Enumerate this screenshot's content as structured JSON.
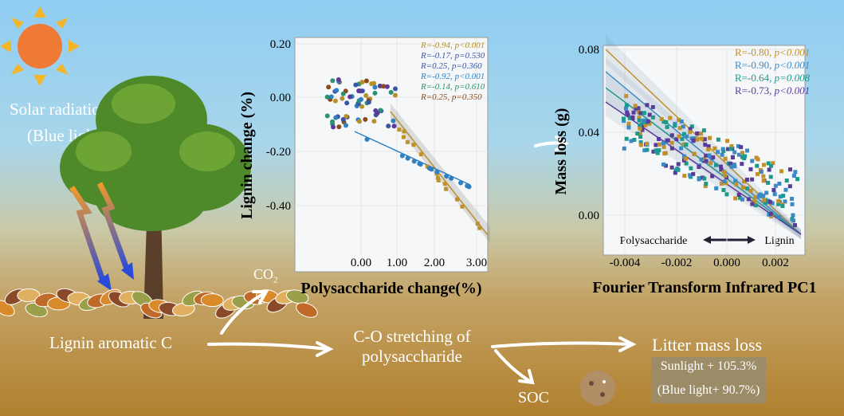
{
  "labels": {
    "solar": "Solar radiation",
    "blue": "(Blue light)",
    "lignin_c": "Lignin aromatic C",
    "co2": "CO",
    "co2_sub": "2",
    "co_stretch1": "C-O stretching of",
    "co_stretch2": "polysaccharide",
    "soc": "SOC",
    "mass_loss_title": "Litter mass loss",
    "sunlight": "Sunlight + 105.3%",
    "bluelight": "(Blue light+ 90.7%)"
  },
  "plot1": {
    "ylabel": "Lignin change (%)",
    "xlabel": "Polysaccharide change(%)",
    "yticks": [
      "0.20",
      "0.00",
      "-0.20",
      "-0.40"
    ],
    "xticks": [
      "0.00",
      "1.00",
      "2.00",
      "3.00"
    ],
    "stats": [
      {
        "r": "R=-0.94,",
        "p": "p<0.001",
        "color": "#b8902a"
      },
      {
        "r": "R=-0.17,",
        "p": "p=0.530",
        "color": "#3a55a8"
      },
      {
        "r": "R=0.25,",
        "p": "p=0.360",
        "color": "#3a55a8"
      },
      {
        "r": "R=-0.92,",
        "p": "p<0.001",
        "color": "#2e80c0"
      },
      {
        "r": "R=-0.14,",
        "p": "p=0.610",
        "color": "#2e9070"
      },
      {
        "r": "R=0.25,",
        "p": "p=0.350",
        "color": "#8b4a1a"
      }
    ]
  },
  "plot2": {
    "ylabel": "Mass loss (g)",
    "xlabel": "Fourier Transform Infrared PC1",
    "yticks": [
      "0.08",
      "0.04",
      "0.00"
    ],
    "xticks": [
      "-0.004",
      "-0.002",
      "0.000",
      "0.002"
    ],
    "axis_left": "Polysaccharide",
    "axis_right": "Lignin",
    "stats": [
      {
        "r": "R=-0.80,",
        "p": "p<0.001",
        "color": "#c0902a"
      },
      {
        "r": "R=-0.90,",
        "p": "p<0.001",
        "color": "#3a8ac8"
      },
      {
        "r": "R=-0.64,",
        "p": "p=0.008",
        "color": "#1a9a8a"
      },
      {
        "r": "R=-0.73,",
        "p": "p<0.001",
        "color": "#5a3a9a"
      }
    ]
  }
}
